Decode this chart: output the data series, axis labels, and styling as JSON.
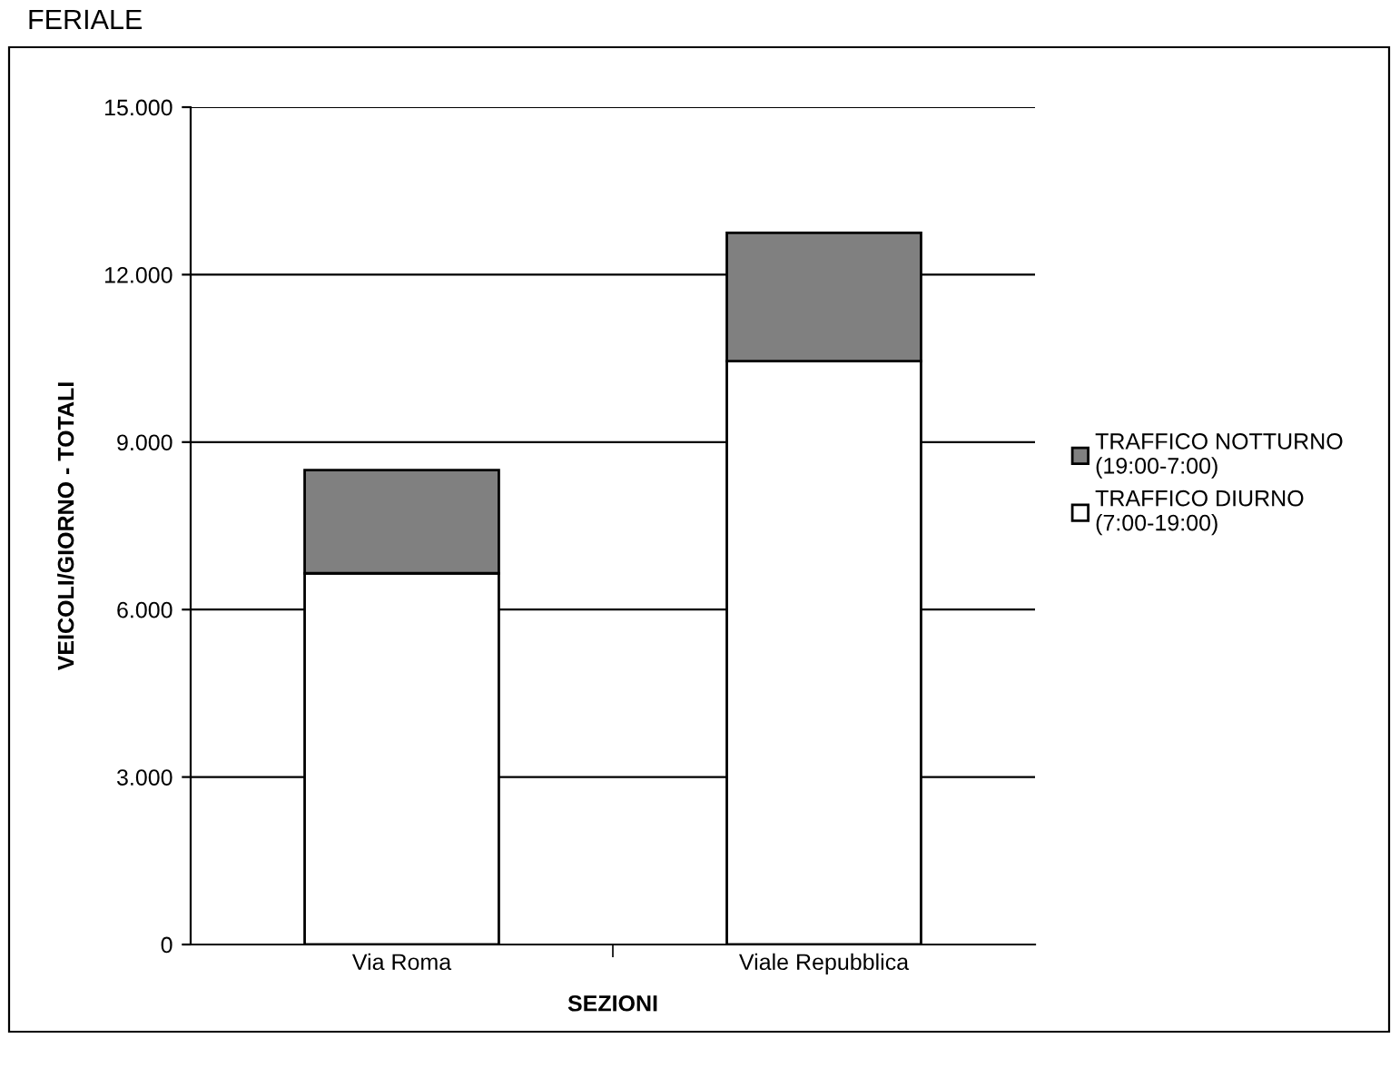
{
  "chart_data": {
    "type": "bar",
    "title": "FERIALE",
    "xlabel": "SEZIONI",
    "ylabel": "VEICOLI/GIORNO - TOTALI",
    "categories": [
      "Via Roma",
      "Viale Repubblica"
    ],
    "series": [
      {
        "name": "TRAFFICO DIURNO\n(7:00-19:00)",
        "color": "#ffffff",
        "values": [
          6650,
          10450
        ]
      },
      {
        "name": "TRAFFICO NOTTURNO\n(19:00-7:00)",
        "color": "#808080",
        "values": [
          1850,
          2300
        ]
      }
    ],
    "stacked": true,
    "ylim": [
      0,
      15000
    ],
    "yticks": [
      {
        "value": 0,
        "label": "0"
      },
      {
        "value": 3000,
        "label": "3.000"
      },
      {
        "value": 6000,
        "label": "6.000"
      },
      {
        "value": 9000,
        "label": "9.000"
      },
      {
        "value": 12000,
        "label": "12.000"
      },
      {
        "value": 15000,
        "label": "15.000"
      }
    ],
    "grid": "y",
    "legend": "right"
  }
}
